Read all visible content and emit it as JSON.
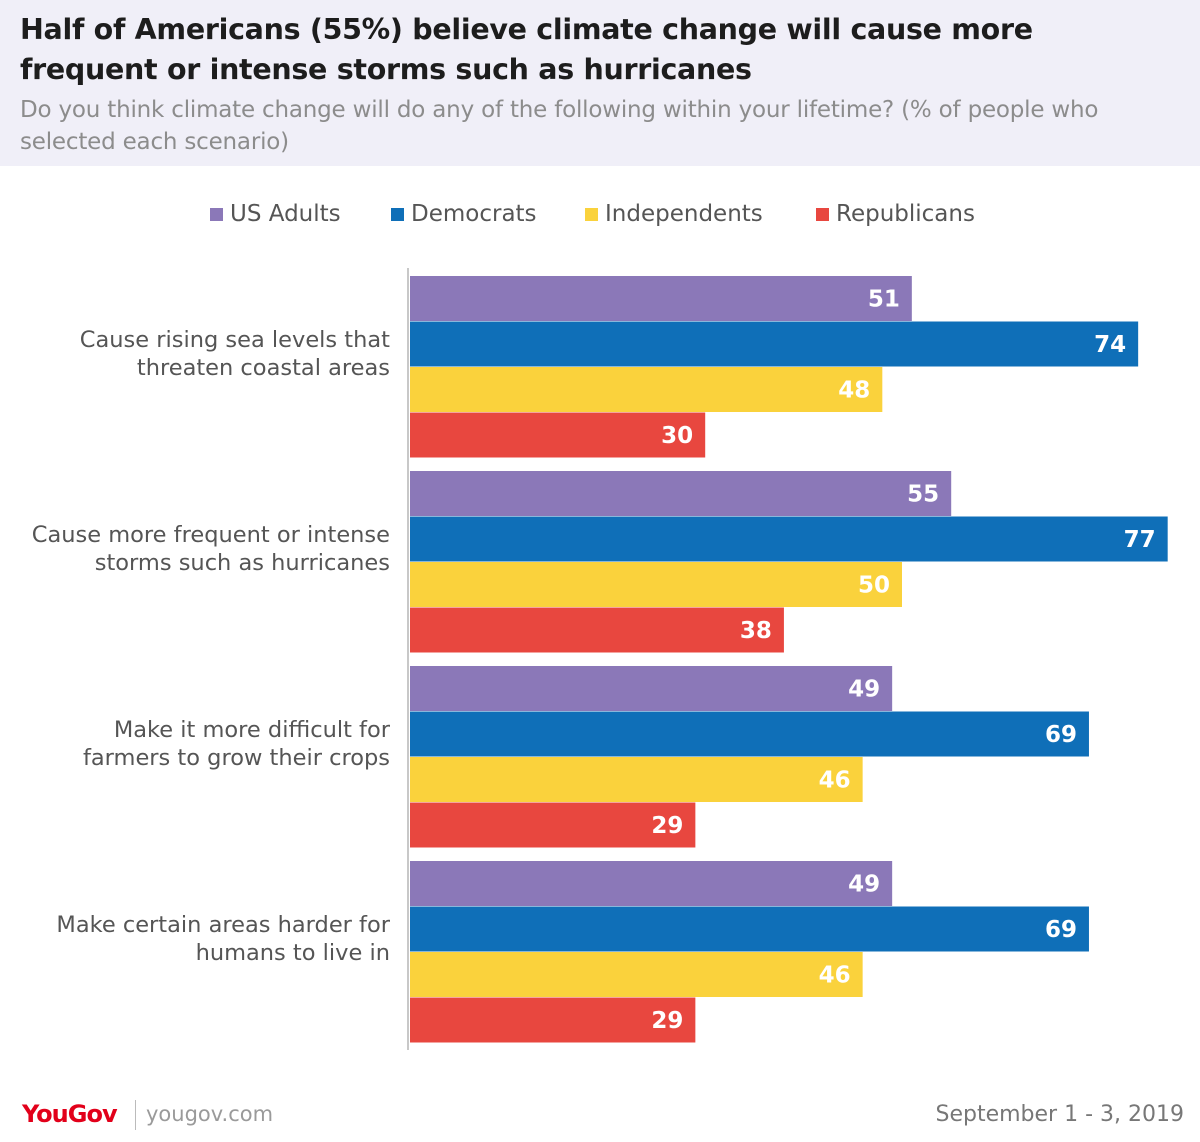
{
  "title": "Half of Americans (55%) believe climate change will cause more frequent or intense storms such as hurricanes",
  "subtitle": "Do you think climate change will do any of the following within your lifetime? (% of people who selected each scenario)",
  "footer": {
    "brand": "YouGov",
    "url": "yougov.com",
    "date": "September 1 - 3, 2019"
  },
  "chart_data": {
    "type": "bar",
    "orientation": "horizontal",
    "categories": [
      "Cause rising sea levels that threaten coastal areas",
      "Cause more frequent or intense storms such as hurricanes",
      "Make it more difficult for farmers to grow their crops",
      "Make certain areas harder for humans to live in"
    ],
    "category_lines": [
      [
        "Cause rising sea levels that",
        "threaten coastal areas"
      ],
      [
        "Cause more frequent or intense",
        "storms such as hurricanes"
      ],
      [
        "Make it more difficult for",
        "farmers to grow their crops"
      ],
      [
        "Make certain areas harder for",
        "humans to live in"
      ]
    ],
    "series": [
      {
        "name": "US Adults",
        "color": "#8b78b8",
        "values": [
          51,
          55,
          49,
          49
        ]
      },
      {
        "name": "Democrats",
        "color": "#0f6fb8",
        "values": [
          74,
          77,
          69,
          69
        ]
      },
      {
        "name": "Independents",
        "color": "#fad23c",
        "values": [
          48,
          50,
          46,
          46
        ]
      },
      {
        "name": "Republicans",
        "color": "#e8473f",
        "values": [
          30,
          38,
          29,
          29
        ]
      }
    ],
    "xlim": [
      0,
      77
    ],
    "legend": "top",
    "grid": false,
    "data_labels": true
  }
}
